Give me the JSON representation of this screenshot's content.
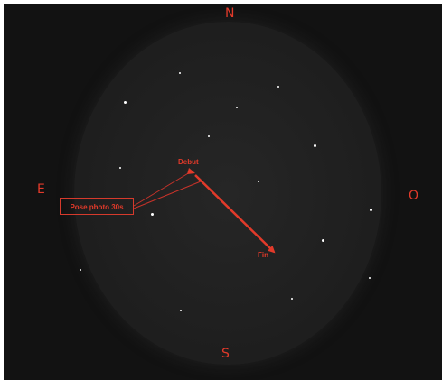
{
  "compass": {
    "north": "N",
    "east": "E",
    "west": "O",
    "south": "S"
  },
  "markers": {
    "start": "Debut",
    "end": "Fin"
  },
  "annotation": {
    "box_label": "Pose photo 30s"
  },
  "colors": {
    "annotation": "#e23a2a",
    "sky_background": "#121212",
    "disc": "#1f1f1f",
    "stars": "#ffffff"
  }
}
